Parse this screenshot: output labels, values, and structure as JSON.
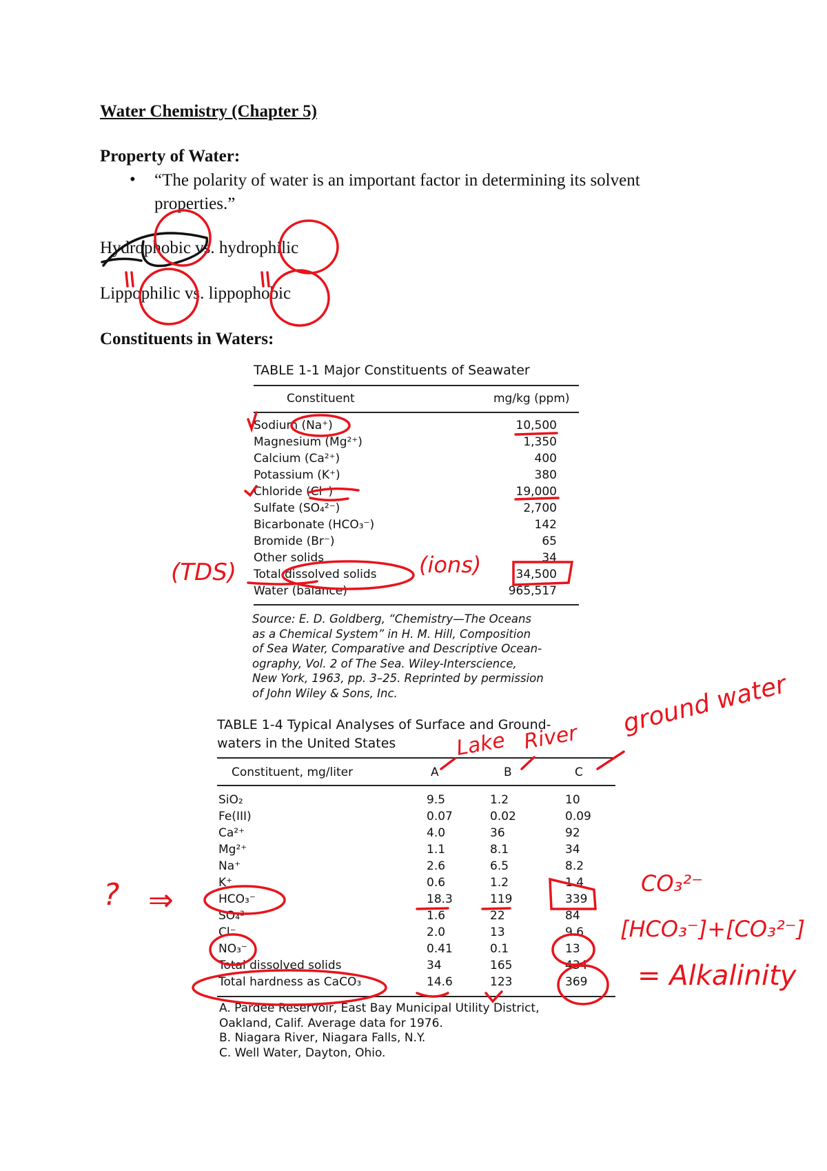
{
  "title": "Water Chemistry (Chapter 5)",
  "property_heading": "Property of Water:",
  "bullet_line1": "“The polarity of water is an important factor in determining its solvent",
  "bullet_line2": "properties.”",
  "line_hydro": "Hydrophobic vs. hydrophilic",
  "line_lipo": "Lippophilic vs. lippophobic",
  "constituents_heading": "Constituents in Waters:",
  "table1": {
    "title": "TABLE 1-1   Major Constituents of Seawater",
    "headers": [
      "Constituent",
      "mg/kg (ppm)"
    ],
    "rows": [
      [
        "Sodium (Na⁺)",
        "10,500"
      ],
      [
        "Magnesium (Mg²⁺)",
        "1,350"
      ],
      [
        "Calcium (Ca²⁺)",
        "400"
      ],
      [
        "Potassium (K⁺)",
        "380"
      ],
      [
        "Chloride (Cl⁻)",
        "19,000"
      ],
      [
        "Sulfate (SO₄²⁻)",
        "2,700"
      ],
      [
        "Bicarbonate (HCO₃⁻)",
        "142"
      ],
      [
        "Bromide (Br⁻)",
        "65"
      ],
      [
        "Other solids",
        "34"
      ],
      [
        "Total dissolved solids",
        "34,500"
      ],
      [
        "Water (balance)",
        "965,517"
      ]
    ],
    "source": [
      "Source: E. D. Goldberg, “Chemistry—The Oceans",
      "as a Chemical System” in H. M. Hill, Composition",
      "of Sea Water, Comparative and Descriptive Ocean-",
      "ography, Vol. 2 of The Sea. Wiley-Interscience,",
      "New York, 1963, pp. 3–25. Reprinted by permission",
      "of John Wiley & Sons, Inc."
    ]
  },
  "table4": {
    "title_line1": "TABLE 1-4   Typical Analyses of Surface and Ground-",
    "title_line2": "waters in the United States",
    "headers": [
      "Constituent, mg/liter",
      "A",
      "B",
      "C"
    ],
    "rows": [
      [
        "SiO₂",
        "9.5",
        "1.2",
        "10"
      ],
      [
        "Fe(III)",
        "0.07",
        "0.02",
        "0.09"
      ],
      [
        "Ca²⁺",
        "4.0",
        "36",
        "92"
      ],
      [
        "Mg²⁺",
        "1.1",
        "8.1",
        "34"
      ],
      [
        "Na⁺",
        "2.6",
        "6.5",
        "8.2"
      ],
      [
        "K⁺",
        "0.6",
        "1.2",
        "1.4"
      ],
      [
        "HCO₃⁻",
        "18.3",
        "119",
        "339"
      ],
      [
        "SO₄²⁻",
        "1.6",
        "22",
        "84"
      ],
      [
        "Cl⁻",
        "2.0",
        "13",
        "9.6"
      ],
      [
        "NO₃⁻",
        "0.41",
        "0.1",
        "13"
      ],
      [
        "Total dissolved solids",
        "34",
        "165",
        "434"
      ],
      [
        "Total hardness as CaCO₃",
        "14.6",
        "123",
        "369"
      ]
    ],
    "footnotes": [
      "A.  Pardee Reservoir, East Bay Municipal Utility District,",
      "Oakland, Calif. Average data for 1976.",
      "B.  Niagara River, Niagara Falls, N.Y.",
      "C.  Well Water, Dayton, Ohio."
    ]
  },
  "handwriting": {
    "tds": "(TDS)",
    "ions": "(ions)",
    "lake": "Lake",
    "river": "River",
    "ground": "ground water",
    "question": "?",
    "arrow": "⇒",
    "co3": "CO₃²⁻",
    "sum": "[HCO₃⁻]+[CO₃²⁻]",
    "alk": "= Alkalinity"
  },
  "colors": {
    "annotation": "#e8141c",
    "ink": "#111111"
  }
}
